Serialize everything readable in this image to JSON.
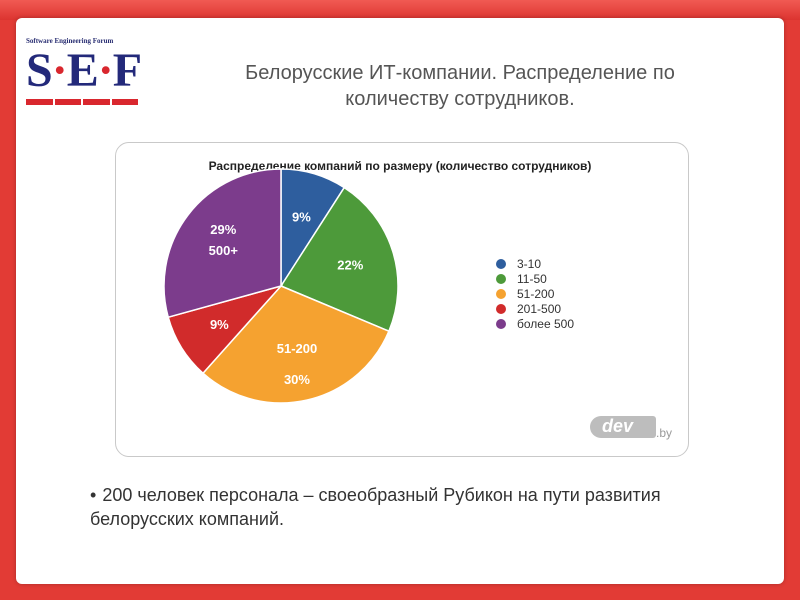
{
  "logo": {
    "caption": "Software Engineering Forum",
    "letters": [
      "S",
      "E",
      "F"
    ],
    "separator": "·"
  },
  "slide_title": "Белорусские ИТ-компании. Распределение по количеству сотрудников.",
  "bullet": {
    "marker": "•",
    "text": "200 человек персонала – своеобразный Рубикон на пути развития белорусских компаний."
  },
  "watermark": {
    "text": "dev",
    "suffix": ".by"
  },
  "chart_data": {
    "type": "pie",
    "title": "Распределение компаний по размеру (количество сотрудников)",
    "legend_position": "right",
    "slices": [
      {
        "legend": "3-10",
        "value": 9,
        "label": "9%",
        "inner_label": "",
        "color": "#2e5e9e"
      },
      {
        "legend": "11-50",
        "value": 22,
        "label": "22%",
        "inner_label": "",
        "color": "#4d9a3a"
      },
      {
        "legend": "51-200",
        "value": 30,
        "label": "30%",
        "inner_label": "51-200",
        "color": "#f5a230"
      },
      {
        "legend": "201-500",
        "value": 9,
        "label": "9%",
        "inner_label": "",
        "color": "#d12b2b"
      },
      {
        "legend": "более 500",
        "value": 29,
        "label": "29%",
        "inner_label": "500+",
        "color": "#7c3c8c"
      }
    ]
  }
}
